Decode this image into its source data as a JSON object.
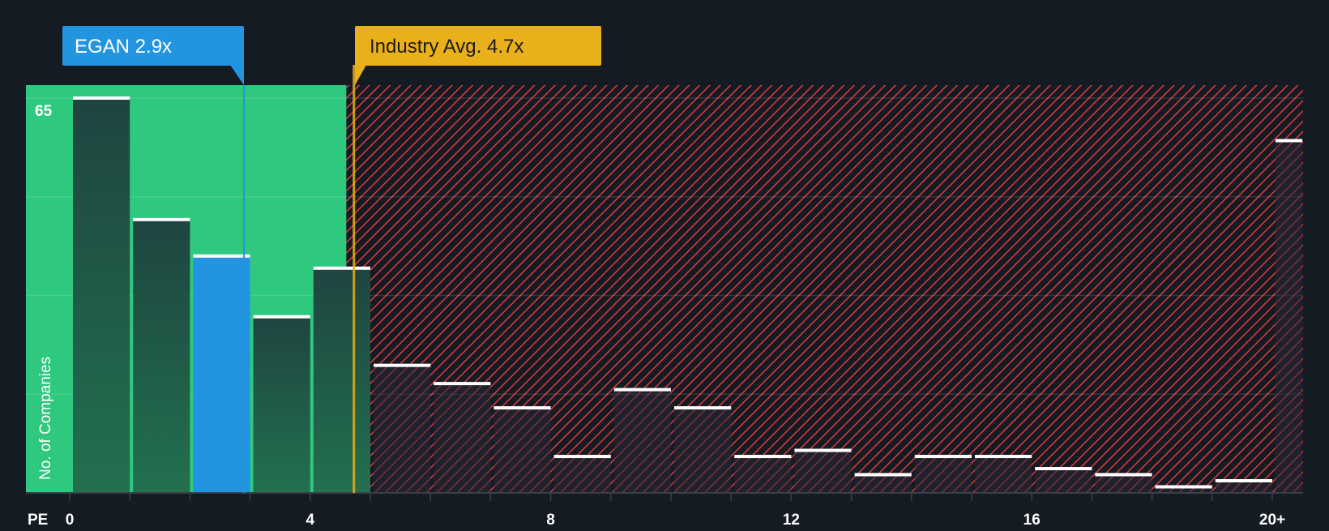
{
  "chart_data": {
    "type": "bar",
    "title": "",
    "xlabel": "PE",
    "ylabel": "No. of Companies",
    "ylim": [
      0,
      65
    ],
    "y_tick_label": "65",
    "x_tick_labels": [
      {
        "value": 0,
        "label": "0"
      },
      {
        "value": 4,
        "label": "4"
      },
      {
        "value": 8,
        "label": "8"
      },
      {
        "value": 12,
        "label": "12"
      },
      {
        "value": 16,
        "label": "16"
      },
      {
        "value": 20,
        "label": "20+"
      }
    ],
    "bins": [
      {
        "from": 0,
        "to": 1,
        "value": 65
      },
      {
        "from": 1,
        "to": 2,
        "value": 45
      },
      {
        "from": 2,
        "to": 3,
        "value": 39,
        "highlight": true
      },
      {
        "from": 3,
        "to": 4,
        "value": 29
      },
      {
        "from": 4,
        "to": 5,
        "value": 37
      },
      {
        "from": 5,
        "to": 6,
        "value": 21
      },
      {
        "from": 6,
        "to": 7,
        "value": 18
      },
      {
        "from": 7,
        "to": 8,
        "value": 14
      },
      {
        "from": 8,
        "to": 9,
        "value": 6
      },
      {
        "from": 9,
        "to": 10,
        "value": 17
      },
      {
        "from": 10,
        "to": 11,
        "value": 14
      },
      {
        "from": 11,
        "to": 12,
        "value": 6
      },
      {
        "from": 12,
        "to": 13,
        "value": 7
      },
      {
        "from": 13,
        "to": 14,
        "value": 3
      },
      {
        "from": 14,
        "to": 15,
        "value": 6
      },
      {
        "from": 15,
        "to": 16,
        "value": 6
      },
      {
        "from": 16,
        "to": 17,
        "value": 4
      },
      {
        "from": 17,
        "to": 18,
        "value": 3
      },
      {
        "from": 18,
        "to": 19,
        "value": 1
      },
      {
        "from": 19,
        "to": 20,
        "value": 2
      },
      {
        "from": 20,
        "to": 20.5,
        "value": 58
      }
    ],
    "company": {
      "label": "EGAN 2.9x",
      "value": 2.9
    },
    "industry": {
      "label": "Industry Avg. 4.7x",
      "value": 4.7
    },
    "fair_region_end": 4.6,
    "colors": {
      "background": "#151b23",
      "green": "#2ec87e",
      "bar": "#1f4a3f",
      "highlight": "#2394e0",
      "industry": "#e9b01c",
      "hatch": "#e03a3e"
    }
  }
}
